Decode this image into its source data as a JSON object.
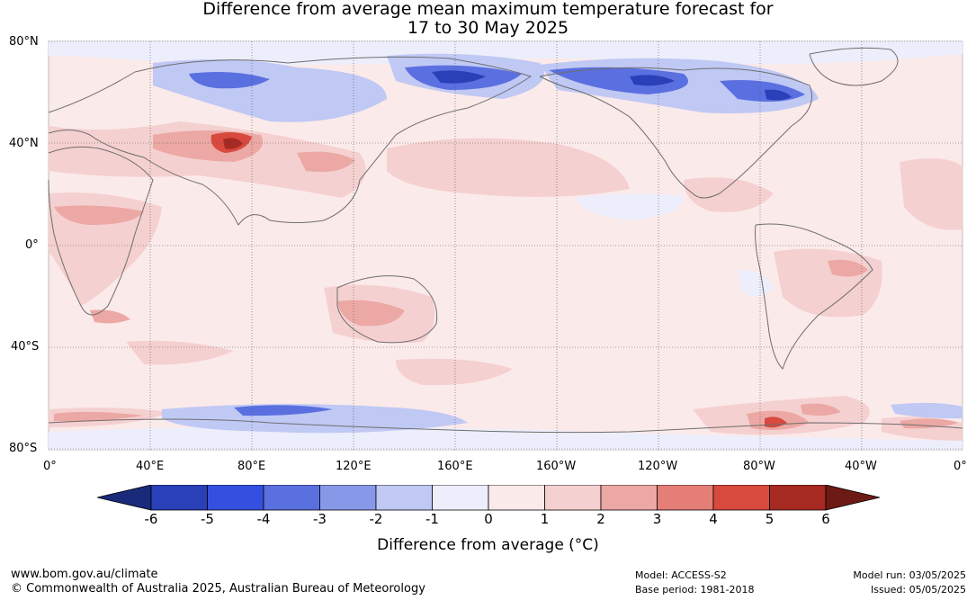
{
  "title_line1": "Difference from average mean maximum temperature forecast for",
  "title_line2": "17 to 30 May 2025",
  "lat_labels": [
    "80°N",
    "40°N",
    "0°",
    "40°S",
    "80°S"
  ],
  "lon_labels": [
    "0°",
    "40°E",
    "80°E",
    "120°E",
    "160°E",
    "160°W",
    "120°W",
    "80°W",
    "40°W",
    "0°"
  ],
  "colorbar": {
    "ticks": [
      "-6",
      "-5",
      "-4",
      "-3",
      "-2",
      "-1",
      "0",
      "1",
      "2",
      "3",
      "4",
      "5",
      "6"
    ],
    "colors": [
      "#1a2a7a",
      "#2a40b8",
      "#3450e0",
      "#5a70e0",
      "#8898e8",
      "#c0c8f4",
      "#eceefc",
      "#fbeaea",
      "#f5d0d0",
      "#eca8a4",
      "#e47e76",
      "#d84a3e",
      "#a62a22",
      "#6e1a14"
    ],
    "label": "Difference from average (°C)"
  },
  "footer": {
    "url": "www.bom.gov.au/climate",
    "copyright": "© Commonwealth of Australia 2025, Australian Bureau of Meteorology",
    "model": "Model: ACCESS-S2",
    "base_period": "Base period: 1981-2018",
    "model_run": "Model run: 03/05/2025",
    "issued": "Issued: 05/05/2025"
  }
}
